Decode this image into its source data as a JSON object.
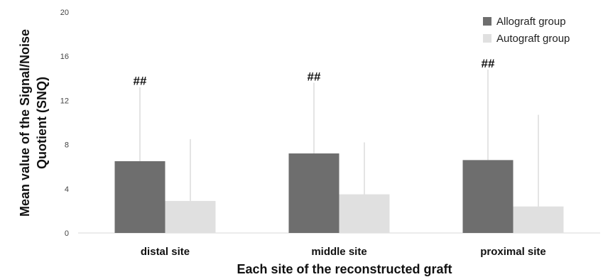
{
  "chart_data": {
    "type": "bar",
    "xlabel": "Each site of the reconstructed graft",
    "ylabel_lines": [
      "Mean value of the Signal/Noise",
      "Quotient (SNQ)"
    ],
    "ylim": [
      0,
      20
    ],
    "yticks": [
      0,
      4,
      8,
      12,
      16,
      20
    ],
    "categories": [
      "distal site",
      "middle site",
      "proximal site"
    ],
    "series": [
      {
        "name": "Allograft group",
        "color": "#6e6e6e",
        "values": [
          6.5,
          7.2,
          6.6
        ],
        "error_upper": [
          13.2,
          13.6,
          14.8
        ]
      },
      {
        "name": "Autograft group",
        "color": "#e0e0e0",
        "values": [
          2.9,
          3.5,
          2.4
        ],
        "error_upper": [
          8.5,
          8.2,
          10.7
        ]
      }
    ],
    "annotations": [
      {
        "text": "##",
        "category": 0,
        "series": 0,
        "value": 13.2
      },
      {
        "text": "##",
        "category": 1,
        "series": 0,
        "value": 13.6
      },
      {
        "text": "##",
        "category": 2,
        "series": 0,
        "value": 14.8
      }
    ],
    "legend_position": "top-right",
    "grid": false
  }
}
